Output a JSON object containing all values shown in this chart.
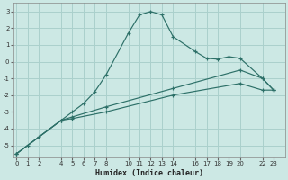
{
  "title": "",
  "xlabel": "Humidex (Indice chaleur)",
  "bg_color": "#cce8e4",
  "grid_color": "#aad0cc",
  "line_color": "#2d7068",
  "xticks": [
    0,
    1,
    2,
    4,
    5,
    6,
    7,
    8,
    10,
    11,
    12,
    13,
    14,
    16,
    17,
    18,
    19,
    20,
    22,
    23
  ],
  "yticks": [
    -5,
    -4,
    -3,
    -2,
    -1,
    0,
    1,
    2,
    3
  ],
  "xlim": [
    -0.3,
    24.0
  ],
  "ylim": [
    -5.7,
    3.5
  ],
  "line1_x": [
    0,
    1,
    2,
    4,
    5,
    6,
    7,
    8,
    10,
    11,
    12,
    13,
    14,
    16,
    17,
    18,
    19,
    20,
    22,
    23
  ],
  "line1_y": [
    -5.5,
    -5.0,
    -4.5,
    -3.5,
    -3.0,
    -2.5,
    -1.8,
    -0.8,
    1.7,
    2.8,
    3.0,
    2.8,
    1.5,
    0.6,
    0.2,
    0.15,
    0.3,
    0.2,
    -1.0,
    -1.7
  ],
  "line2_x": [
    0,
    4,
    5,
    8,
    14,
    20,
    22,
    23
  ],
  "line2_y": [
    -5.5,
    -3.5,
    -3.4,
    -3.0,
    -2.0,
    -1.3,
    -1.7,
    -1.7
  ],
  "line3_x": [
    0,
    4,
    5,
    8,
    14,
    20,
    22,
    23
  ],
  "line3_y": [
    -5.5,
    -3.5,
    -3.3,
    -2.7,
    -1.6,
    -0.5,
    -1.0,
    -1.7
  ]
}
